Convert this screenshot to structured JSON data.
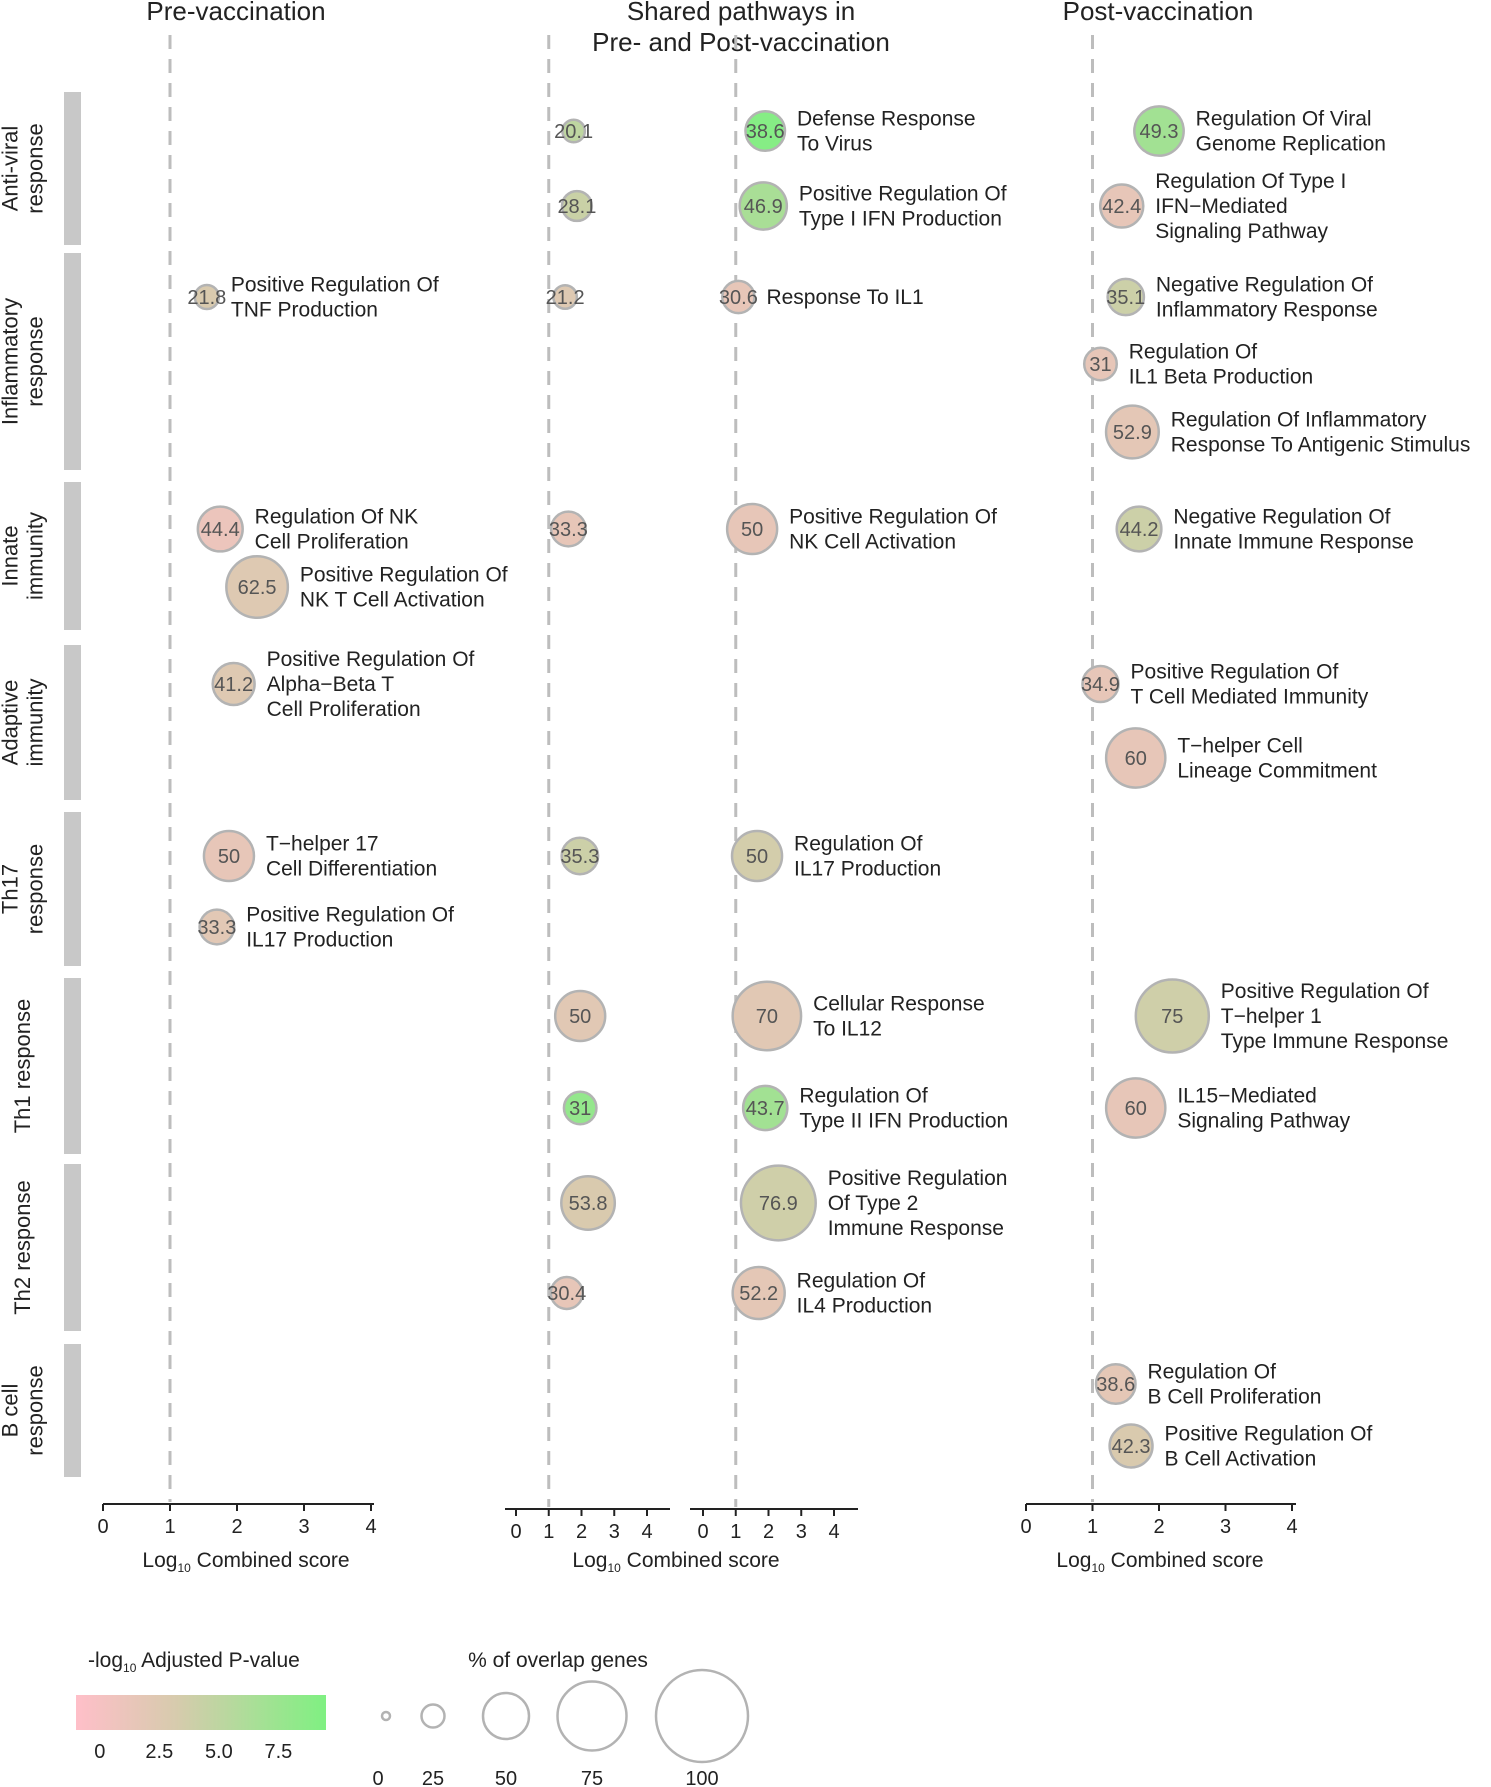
{
  "chart_data": {
    "type": "bubble",
    "panels": [
      {
        "key": "pre",
        "title_lines": [
          "Pre-vaccination"
        ]
      },
      {
        "key": "shared_pre",
        "title_lines": [
          "Shared pathways in",
          "Pre- and Post-vaccination"
        ]
      },
      {
        "key": "shared_post",
        "title_lines": []
      },
      {
        "key": "post",
        "title_lines": [
          "Post-vaccination"
        ]
      }
    ],
    "xaxis": {
      "label_prefix": "Log",
      "label_sub": "10",
      "label_suffix": " Combined score",
      "ticks": [
        "0",
        "1",
        "2",
        "3",
        "4"
      ],
      "range": [
        0,
        4
      ],
      "reference_line": 1
    },
    "categories": [
      {
        "name_lines": [
          "Anti-viral",
          "response"
        ]
      },
      {
        "name_lines": [
          "Inflammatory",
          "response"
        ]
      },
      {
        "name_lines": [
          "Innate",
          "immunity"
        ]
      },
      {
        "name_lines": [
          "Adaptive",
          "immunity"
        ]
      },
      {
        "name_lines": [
          "Th17",
          "response"
        ]
      },
      {
        "name_lines": [
          "Th1 response"
        ]
      },
      {
        "name_lines": [
          "Th2 response"
        ]
      },
      {
        "name_lines": [
          "B cell",
          "response"
        ]
      }
    ],
    "points": [
      {
        "panel": "shared_pre",
        "category": 0,
        "x": 1.76,
        "overlap": 20.1,
        "label_text": "20.1",
        "neglog10_padj": 5.0
      },
      {
        "panel": "shared_post",
        "category": 0,
        "x": 1.9,
        "overlap": 38.6,
        "label_text": "38.6",
        "neglog10_padj": 9.0,
        "pathway_lines": [
          "Defense Response",
          "To Virus"
        ]
      },
      {
        "panel": "post",
        "category": 0,
        "x": 2.0,
        "overlap": 49.3,
        "label_text": "49.3",
        "neglog10_padj": 7.0,
        "pathway_lines": [
          "Regulation Of Viral",
          "Genome Replication"
        ]
      },
      {
        "panel": "shared_pre",
        "category": 0,
        "x": 1.86,
        "overlap": 28.1,
        "label_text": "28.1",
        "neglog10_padj": 4.2
      },
      {
        "panel": "shared_post",
        "category": 0,
        "x": 1.84,
        "overlap": 46.9,
        "label_text": "46.9",
        "neglog10_padj": 6.5,
        "pathway_lines": [
          "Positive Regulation Of",
          "Type I IFN Production"
        ]
      },
      {
        "panel": "post",
        "category": 0,
        "x": 1.44,
        "overlap": 42.4,
        "label_text": "42.4",
        "neglog10_padj": 1.5,
        "pathway_lines": [
          "Regulation Of Type I",
          "IFN−Mediated",
          "Signaling Pathway"
        ]
      },
      {
        "panel": "pre",
        "category": 1,
        "x": 1.55,
        "overlap": 21.8,
        "label_text": "21.8",
        "neglog10_padj": 3.0,
        "pathway_lines": [
          "Positive Regulation Of",
          "TNF Production"
        ]
      },
      {
        "panel": "shared_pre",
        "category": 1,
        "x": 1.5,
        "overlap": 21.2,
        "label_text": "21.2",
        "neglog10_padj": 2.5
      },
      {
        "panel": "shared_post",
        "category": 1,
        "x": 1.08,
        "overlap": 30.6,
        "label_text": "30.6",
        "neglog10_padj": 1.5,
        "pathway_lines": [
          "Response To IL1"
        ]
      },
      {
        "panel": "post",
        "category": 1,
        "x": 1.5,
        "overlap": 35.1,
        "label_text": "35.1",
        "neglog10_padj": 4.0,
        "pathway_lines": [
          "Negative Regulation Of",
          "Inflammatory Response"
        ]
      },
      {
        "panel": "post",
        "category": 1,
        "x": 1.12,
        "overlap": 31,
        "label_text": "31",
        "neglog10_padj": 1.5,
        "pathway_lines": [
          "Regulation Of",
          "IL1 Beta Production"
        ]
      },
      {
        "panel": "post",
        "category": 1,
        "x": 1.6,
        "overlap": 52.9,
        "label_text": "52.9",
        "neglog10_padj": 1.8,
        "pathway_lines": [
          "Regulation Of Inflammatory",
          "Response To Antigenic Stimulus"
        ]
      },
      {
        "panel": "pre",
        "category": 2,
        "x": 1.75,
        "overlap": 44.4,
        "label_text": "44.4",
        "neglog10_padj": 1.0,
        "pathway_lines": [
          "Regulation Of NK",
          "Cell Proliferation"
        ]
      },
      {
        "panel": "pre",
        "category": 2,
        "x": 2.3,
        "overlap": 62.5,
        "label_text": "62.5",
        "neglog10_padj": 2.5,
        "pathway_lines": [
          "Positive Regulation Of",
          "NK T Cell Activation"
        ]
      },
      {
        "panel": "shared_pre",
        "category": 2,
        "x": 1.6,
        "overlap": 33.3,
        "label_text": "33.3",
        "neglog10_padj": 1.5
      },
      {
        "panel": "shared_post",
        "category": 2,
        "x": 1.5,
        "overlap": 50,
        "label_text": "50",
        "neglog10_padj": 1.5,
        "pathway_lines": [
          "Positive Regulation Of",
          "NK Cell Activation"
        ]
      },
      {
        "panel": "post",
        "category": 2,
        "x": 1.7,
        "overlap": 44.2,
        "label_text": "44.2",
        "neglog10_padj": 4.0,
        "pathway_lines": [
          "Negative Regulation Of",
          "Innate Immune Response"
        ]
      },
      {
        "panel": "pre",
        "category": 3,
        "x": 1.95,
        "overlap": 41.2,
        "label_text": "41.2",
        "neglog10_padj": 2.5,
        "pathway_lines": [
          "Positive Regulation Of",
          "Alpha−Beta T",
          "Cell Proliferation"
        ]
      },
      {
        "panel": "post",
        "category": 3,
        "x": 1.12,
        "overlap": 34.9,
        "label_text": "34.9",
        "neglog10_padj": 1.5,
        "pathway_lines": [
          "Positive Regulation Of",
          "T Cell Mediated Immunity"
        ]
      },
      {
        "panel": "post",
        "category": 3,
        "x": 1.65,
        "overlap": 60,
        "label_text": "60",
        "neglog10_padj": 1.5,
        "pathway_lines": [
          "T−helper Cell",
          "Lineage Commitment"
        ]
      },
      {
        "panel": "pre",
        "category": 4,
        "x": 1.88,
        "overlap": 50,
        "label_text": "50",
        "neglog10_padj": 1.5,
        "pathway_lines": [
          "T−helper 17",
          "Cell Differentiation"
        ]
      },
      {
        "panel": "shared_pre",
        "category": 4,
        "x": 1.95,
        "overlap": 35.3,
        "label_text": "35.3",
        "neglog10_padj": 4.0
      },
      {
        "panel": "shared_post",
        "category": 4,
        "x": 1.65,
        "overlap": 50,
        "label_text": "50",
        "neglog10_padj": 3.5,
        "pathway_lines": [
          "Regulation Of",
          "IL17 Production"
        ]
      },
      {
        "panel": "pre",
        "category": 4,
        "x": 1.7,
        "overlap": 33.3,
        "label_text": "33.3",
        "neglog10_padj": 2.0,
        "pathway_lines": [
          "Positive Regulation Of",
          "IL17 Production"
        ]
      },
      {
        "panel": "shared_pre",
        "category": 5,
        "x": 1.96,
        "overlap": 50,
        "label_text": "50",
        "neglog10_padj": 2.2
      },
      {
        "panel": "shared_post",
        "category": 5,
        "x": 1.95,
        "overlap": 70,
        "label_text": "70",
        "neglog10_padj": 2.2,
        "pathway_lines": [
          "Cellular Response",
          "To IL12"
        ]
      },
      {
        "panel": "post",
        "category": 5,
        "x": 2.2,
        "overlap": 75,
        "label_text": "75",
        "neglog10_padj": 3.8,
        "pathway_lines": [
          "Positive Regulation Of",
          "T−helper 1",
          "Type Immune Response"
        ]
      },
      {
        "panel": "shared_pre",
        "category": 5,
        "x": 1.96,
        "overlap": 31,
        "label_text": "31",
        "neglog10_padj": 8.0
      },
      {
        "panel": "shared_post",
        "category": 5,
        "x": 1.9,
        "overlap": 43.7,
        "label_text": "43.7",
        "neglog10_padj": 7.0,
        "pathway_lines": [
          "Regulation Of",
          "Type II IFN Production"
        ]
      },
      {
        "panel": "post",
        "category": 5,
        "x": 1.65,
        "overlap": 60,
        "label_text": "60",
        "neglog10_padj": 1.5,
        "pathway_lines": [
          "IL15−Mediated",
          "Signaling Pathway"
        ]
      },
      {
        "panel": "shared_pre",
        "category": 6,
        "x": 2.2,
        "overlap": 53.8,
        "label_text": "53.8",
        "neglog10_padj": 3.0
      },
      {
        "panel": "shared_post",
        "category": 6,
        "x": 2.3,
        "overlap": 76.9,
        "label_text": "76.9",
        "neglog10_padj": 3.8,
        "pathway_lines": [
          "Positive Regulation",
          "Of Type 2",
          "Immune Response"
        ]
      },
      {
        "panel": "shared_pre",
        "category": 6,
        "x": 1.55,
        "overlap": 30.4,
        "label_text": "30.4",
        "neglog10_padj": 1.5
      },
      {
        "panel": "shared_post",
        "category": 6,
        "x": 1.7,
        "overlap": 52.2,
        "label_text": "52.2",
        "neglog10_padj": 1.8,
        "pathway_lines": [
          "Regulation Of",
          "IL4 Production"
        ]
      },
      {
        "panel": "post",
        "category": 7,
        "x": 1.35,
        "overlap": 38.6,
        "label_text": "38.6",
        "neglog10_padj": 1.8,
        "pathway_lines": [
          "Regulation Of",
          "B Cell Proliferation"
        ]
      },
      {
        "panel": "post",
        "category": 7,
        "x": 1.58,
        "overlap": 42.3,
        "label_text": "42.3",
        "neglog10_padj": 3.0,
        "pathway_lines": [
          "Positive Regulation Of",
          "B Cell Activation"
        ]
      }
    ],
    "legend": {
      "color": {
        "title_prefix": "-log",
        "title_sub": "10",
        "title_suffix": " Adjusted P-value",
        "range": [
          -1,
          9.5
        ],
        "ticks": [
          "0",
          "2.5",
          "5.0",
          "7.5"
        ],
        "tick_values": [
          0,
          2.5,
          5.0,
          7.5
        ],
        "low_color": "#ffbfc9",
        "mid_color": "#d7cbad",
        "high_color": "#7ff082"
      },
      "size": {
        "title": "% of overlap genes",
        "values": [
          0,
          25,
          50,
          75,
          100
        ],
        "labels": [
          "0",
          "25",
          "50",
          "75",
          "100"
        ]
      }
    }
  }
}
